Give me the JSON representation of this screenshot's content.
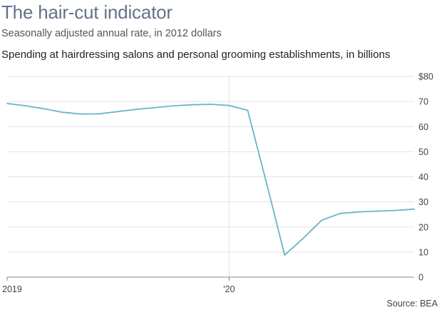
{
  "header": {
    "title": "The hair-cut indicator",
    "subtitle": "Seasonally adjusted annual rate, in 2012 dollars"
  },
  "footer": {
    "source": "Source: BEA"
  },
  "chart_data": {
    "type": "line",
    "title": "Spending at hairdressing salons and personal grooming establishments, in billions",
    "xlabel": "",
    "ylabel": "",
    "x_tick_labels": [
      "2019",
      "'20"
    ],
    "x": [
      "2019-01",
      "2019-02",
      "2019-03",
      "2019-04",
      "2019-05",
      "2019-06",
      "2019-07",
      "2019-08",
      "2019-09",
      "2019-10",
      "2019-11",
      "2019-12",
      "2020-01",
      "2020-02",
      "2020-03",
      "2020-04",
      "2020-05",
      "2020-06",
      "2020-07",
      "2020-08",
      "2020-09",
      "2020-10",
      "2020-11"
    ],
    "series": [
      {
        "values": [
          69.2,
          68.3,
          67.1,
          65.7,
          65.0,
          65.1,
          66.0,
          66.9,
          67.6,
          68.3,
          68.7,
          68.9,
          68.4,
          66.5,
          38.0,
          8.8,
          15.5,
          22.7,
          25.4,
          26.0,
          26.3,
          26.6,
          27.1
        ]
      }
    ],
    "y_ticks": [
      "$80",
      "70",
      "60",
      "50",
      "40",
      "30",
      "20",
      "10",
      "0"
    ],
    "y_tick_values": [
      80,
      70,
      60,
      50,
      40,
      30,
      20,
      10,
      0
    ],
    "ylim": [
      0,
      80
    ],
    "y_axis_position": "right",
    "grid": true,
    "line_color": "#6ab4c8",
    "grid_color": "#e3e3e3",
    "axis_color": "#888888"
  }
}
